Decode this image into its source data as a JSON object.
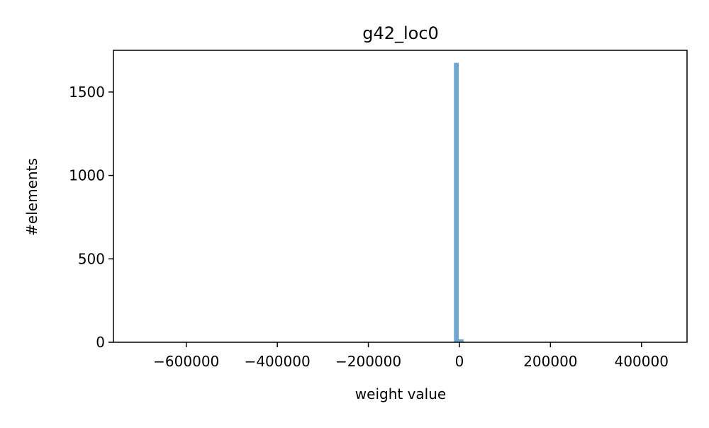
{
  "chart_data": {
    "type": "bar",
    "title": "g42_loc0",
    "xlabel": "weight value",
    "ylabel": "#elements",
    "xlim": [
      -760000,
      500000
    ],
    "ylim": [
      0,
      1750
    ],
    "x_ticks": [
      {
        "value": -600000,
        "label": "−600000"
      },
      {
        "value": -400000,
        "label": "−400000"
      },
      {
        "value": -200000,
        "label": "−200000"
      },
      {
        "value": 0,
        "label": "0"
      },
      {
        "value": 200000,
        "label": "200000"
      },
      {
        "value": 400000,
        "label": "400000"
      }
    ],
    "y_ticks": [
      {
        "value": 0,
        "label": "0"
      },
      {
        "value": 500,
        "label": "500"
      },
      {
        "value": 1000,
        "label": "1000"
      },
      {
        "value": 1500,
        "label": "1500"
      }
    ],
    "bins": [
      {
        "x0": -12000,
        "x1": -1500,
        "count": 1675
      },
      {
        "x0": -1500,
        "x1": 9000,
        "count": 18
      }
    ],
    "bar_color": "#6ea6cf",
    "grid": false
  }
}
